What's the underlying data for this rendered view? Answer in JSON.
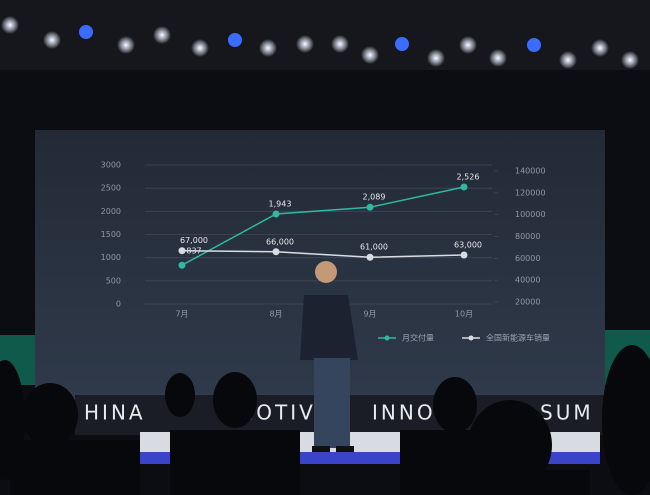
{
  "chart_data": {
    "type": "line",
    "categories": [
      "7月",
      "8月",
      "9月",
      "10月"
    ],
    "series": [
      {
        "name": "月交付量",
        "color": "#2fb9a0",
        "values": [
          837,
          1943,
          2089,
          2526
        ],
        "value_labels": [
          "837",
          "1,943",
          "2,089",
          "2,526"
        ]
      },
      {
        "name": "全国新能源车销量",
        "color": "#d9dde3",
        "axis": "y2",
        "values": [
          67000,
          66000,
          61000,
          63000
        ],
        "value_labels": [
          "67,000",
          "66,000",
          "61,000",
          "63,000"
        ]
      }
    ],
    "ylim": [
      0,
      3000
    ],
    "yticks": [
      0,
      500,
      1000,
      1500,
      2000,
      2500,
      3000
    ],
    "y2lim": [
      20000,
      140000
    ],
    "y2ticks": [
      20000,
      40000,
      60000,
      80000,
      100000,
      120000,
      140000
    ],
    "grid": true,
    "legend": "bottom-right"
  },
  "banner": [
    "HINA",
    "MOTIVE",
    "INNO",
    "N",
    "SUM"
  ]
}
